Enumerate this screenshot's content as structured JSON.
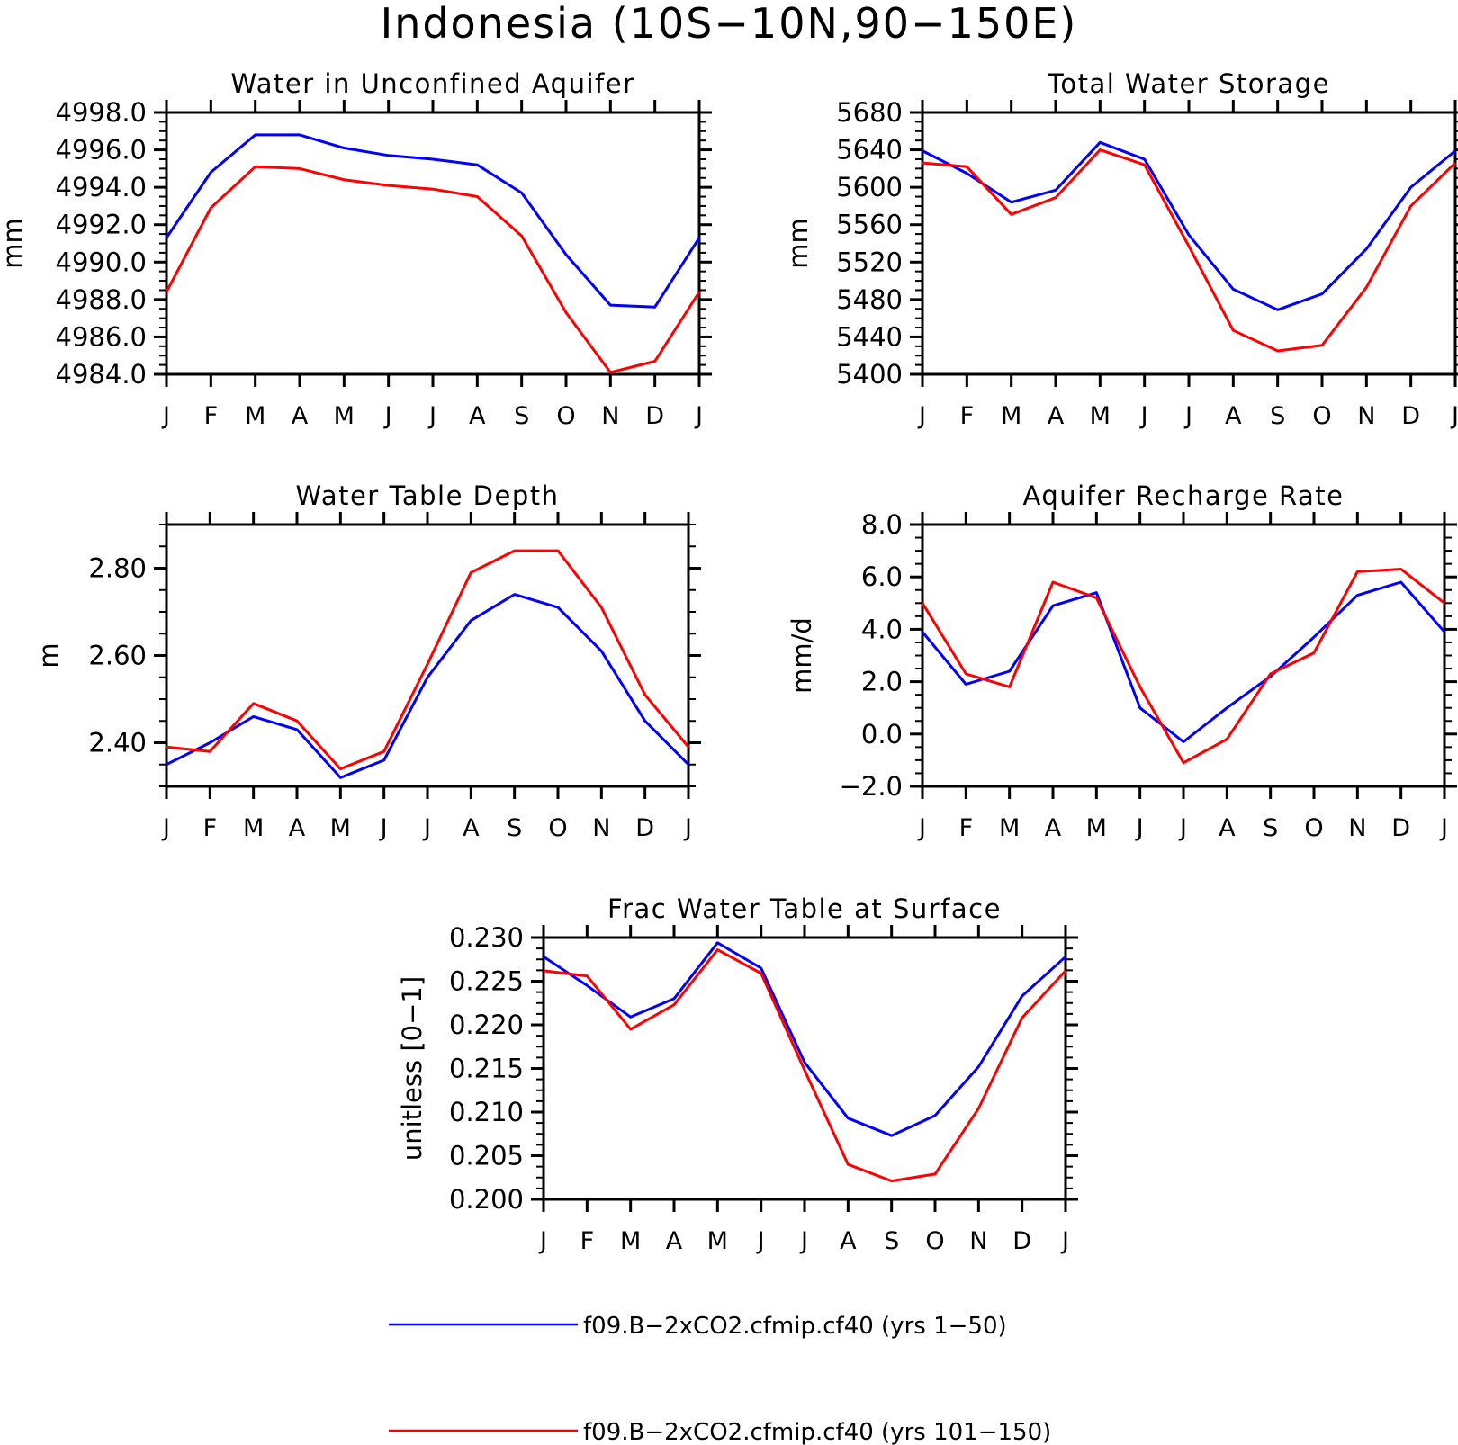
{
  "figure_title": "Indonesia (10S−10N,90−150E)",
  "legend": [
    {
      "label": "f09.B−2xCO2.cfmip.cf40 (yrs 1−50)",
      "color": "#0000ff"
    },
    {
      "label": "f09.B−2xCO2.cfmip.cf40 (yrs 101−150)",
      "color": "#ff0000"
    }
  ],
  "chart_data": [
    {
      "type": "line",
      "title": "Water in Unconfined Aquifer",
      "xlabel": "",
      "ylabel": "mm",
      "categories": [
        "J",
        "F",
        "M",
        "A",
        "M",
        "J",
        "J",
        "A",
        "S",
        "O",
        "N",
        "D",
        "J"
      ],
      "ylim": [
        4984.0,
        4998.0
      ],
      "yticks": [
        "4998.0",
        "4996.0",
        "4994.0",
        "4992.0",
        "4990.0",
        "4988.0",
        "4986.0",
        "4984.0"
      ],
      "series": [
        {
          "color": "#0000ff",
          "values": [
            4991.3,
            4994.8,
            4996.8,
            4996.8,
            4996.1,
            4995.7,
            4995.5,
            4995.2,
            4993.7,
            4990.4,
            4987.7,
            4987.6,
            4991.3
          ]
        },
        {
          "color": "#ff0000",
          "values": [
            4988.4,
            4992.9,
            4995.1,
            4995.0,
            4994.4,
            4994.1,
            4993.9,
            4993.5,
            4991.4,
            4987.3,
            4984.1,
            4984.7,
            4988.4
          ]
        }
      ]
    },
    {
      "type": "line",
      "title": "Total Water Storage",
      "xlabel": "",
      "ylabel": "mm",
      "categories": [
        "J",
        "F",
        "M",
        "A",
        "M",
        "J",
        "J",
        "A",
        "S",
        "O",
        "N",
        "D",
        "J"
      ],
      "ylim": [
        5400,
        5680
      ],
      "yticks": [
        "5680",
        "5640",
        "5600",
        "5560",
        "5520",
        "5480",
        "5440",
        "5400"
      ],
      "series": [
        {
          "color": "#0000ff",
          "values": [
            5639,
            5615,
            5584,
            5597,
            5648,
            5630,
            5549,
            5491,
            5469,
            5486,
            5534,
            5600,
            5639
          ]
        },
        {
          "color": "#ff0000",
          "values": [
            5626,
            5622,
            5571,
            5589,
            5640,
            5624,
            5537,
            5447,
            5425,
            5431,
            5493,
            5580,
            5626
          ]
        }
      ]
    },
    {
      "type": "line",
      "title": "Water Table Depth",
      "xlabel": "",
      "ylabel": "m",
      "categories": [
        "J",
        "F",
        "M",
        "A",
        "M",
        "J",
        "J",
        "A",
        "S",
        "O",
        "N",
        "D",
        "J"
      ],
      "ylim": [
        2.3,
        2.9
      ],
      "yticks": [
        "2.80",
        "2.60",
        "2.40"
      ],
      "series": [
        {
          "color": "#0000ff",
          "values": [
            2.35,
            2.4,
            2.46,
            2.43,
            2.32,
            2.36,
            2.55,
            2.68,
            2.74,
            2.71,
            2.61,
            2.45,
            2.35
          ]
        },
        {
          "color": "#ff0000",
          "values": [
            2.39,
            2.38,
            2.49,
            2.45,
            2.34,
            2.38,
            2.58,
            2.79,
            2.84,
            2.84,
            2.71,
            2.51,
            2.39
          ]
        }
      ]
    },
    {
      "type": "line",
      "title": "Aquifer Recharge Rate",
      "xlabel": "",
      "ylabel": "mm/d",
      "categories": [
        "J",
        "F",
        "M",
        "A",
        "M",
        "J",
        "J",
        "A",
        "S",
        "O",
        "N",
        "D",
        "J"
      ],
      "ylim": [
        -2.0,
        8.0
      ],
      "yticks": [
        "8.0",
        "6.0",
        "4.0",
        "2.0",
        "0.0",
        "−2.0"
      ],
      "series": [
        {
          "color": "#0000ff",
          "values": [
            3.9,
            1.9,
            2.4,
            4.9,
            5.4,
            1.0,
            -0.3,
            1.0,
            2.2,
            3.7,
            5.3,
            5.8,
            3.9
          ]
        },
        {
          "color": "#ff0000",
          "values": [
            5.0,
            2.3,
            1.8,
            5.8,
            5.2,
            1.8,
            -1.1,
            -0.2,
            2.3,
            3.1,
            6.2,
            6.3,
            5.0
          ]
        }
      ]
    },
    {
      "type": "line",
      "title": "Frac Water Table at Surface",
      "xlabel": "",
      "ylabel": "unitless [0−1]",
      "categories": [
        "J",
        "F",
        "M",
        "A",
        "M",
        "J",
        "J",
        "A",
        "S",
        "O",
        "N",
        "D",
        "J"
      ],
      "ylim": [
        0.2,
        0.23
      ],
      "yticks": [
        "0.230",
        "0.225",
        "0.220",
        "0.215",
        "0.210",
        "0.205",
        "0.200"
      ],
      "series": [
        {
          "color": "#0000ff",
          "values": [
            0.2278,
            0.2245,
            0.2209,
            0.223,
            0.2294,
            0.2265,
            0.2157,
            0.2093,
            0.2073,
            0.2096,
            0.2152,
            0.2233,
            0.2278
          ]
        },
        {
          "color": "#ff0000",
          "values": [
            0.2262,
            0.2256,
            0.2195,
            0.2223,
            0.2286,
            0.2259,
            0.2148,
            0.204,
            0.2021,
            0.2029,
            0.2104,
            0.2208,
            0.2262
          ]
        }
      ]
    }
  ]
}
